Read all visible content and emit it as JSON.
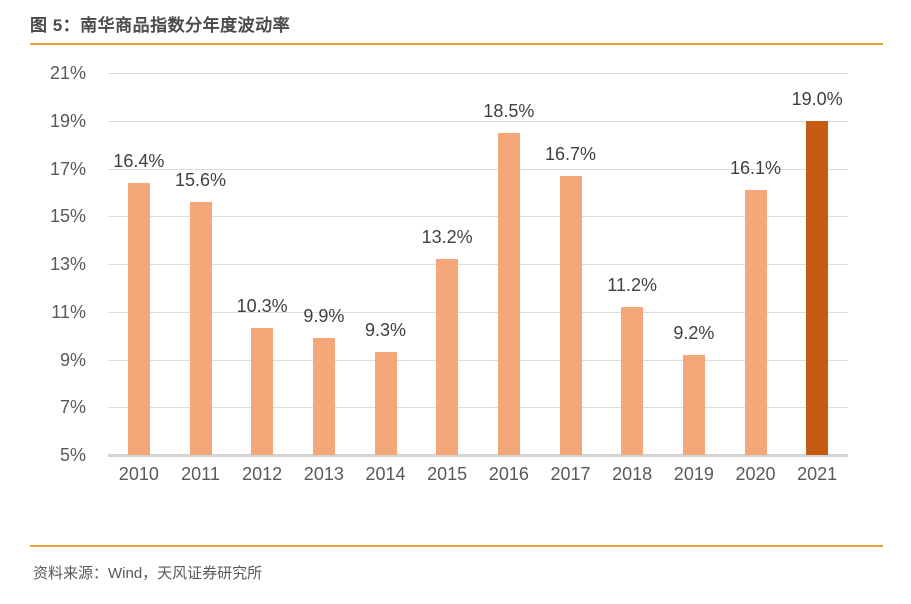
{
  "header": {
    "title": "图 5：南华商品指数分年度波动率"
  },
  "footer": {
    "source": "资料来源：Wind，天风证券研究所"
  },
  "colors": {
    "accent_rule": "#e8a33c",
    "bar": "#f4a87a",
    "bar_highlight": "#c55a11",
    "gridline": "#dcdcdc",
    "baseline": "#d4d4d4",
    "tick_text": "#595959",
    "data_label_text": "#404040",
    "title_text": "#4a4a4a"
  },
  "chart_data": {
    "type": "bar",
    "title": "南华商品指数分年度波动率",
    "xlabel": "",
    "ylabel": "",
    "categories": [
      "2010",
      "2011",
      "2012",
      "2013",
      "2014",
      "2015",
      "2016",
      "2017",
      "2018",
      "2019",
      "2020",
      "2021"
    ],
    "values": [
      16.4,
      15.6,
      10.3,
      9.9,
      9.3,
      13.2,
      18.5,
      16.7,
      11.2,
      9.2,
      16.1,
      19.0
    ],
    "data_labels": [
      "16.4%",
      "15.6%",
      "10.3%",
      "9.9%",
      "9.3%",
      "13.2%",
      "18.5%",
      "16.7%",
      "11.2%",
      "9.2%",
      "16.1%",
      "19.0%"
    ],
    "highlight_index": 11,
    "ylim": [
      5,
      21
    ],
    "ytick_step": 2,
    "ytick_labels_top_to_bottom": [
      "21%",
      "19%",
      "17%",
      "15%",
      "13%",
      "11%",
      "9%",
      "7%",
      "5%"
    ],
    "grid": "horizontal",
    "legend_position": "none"
  }
}
